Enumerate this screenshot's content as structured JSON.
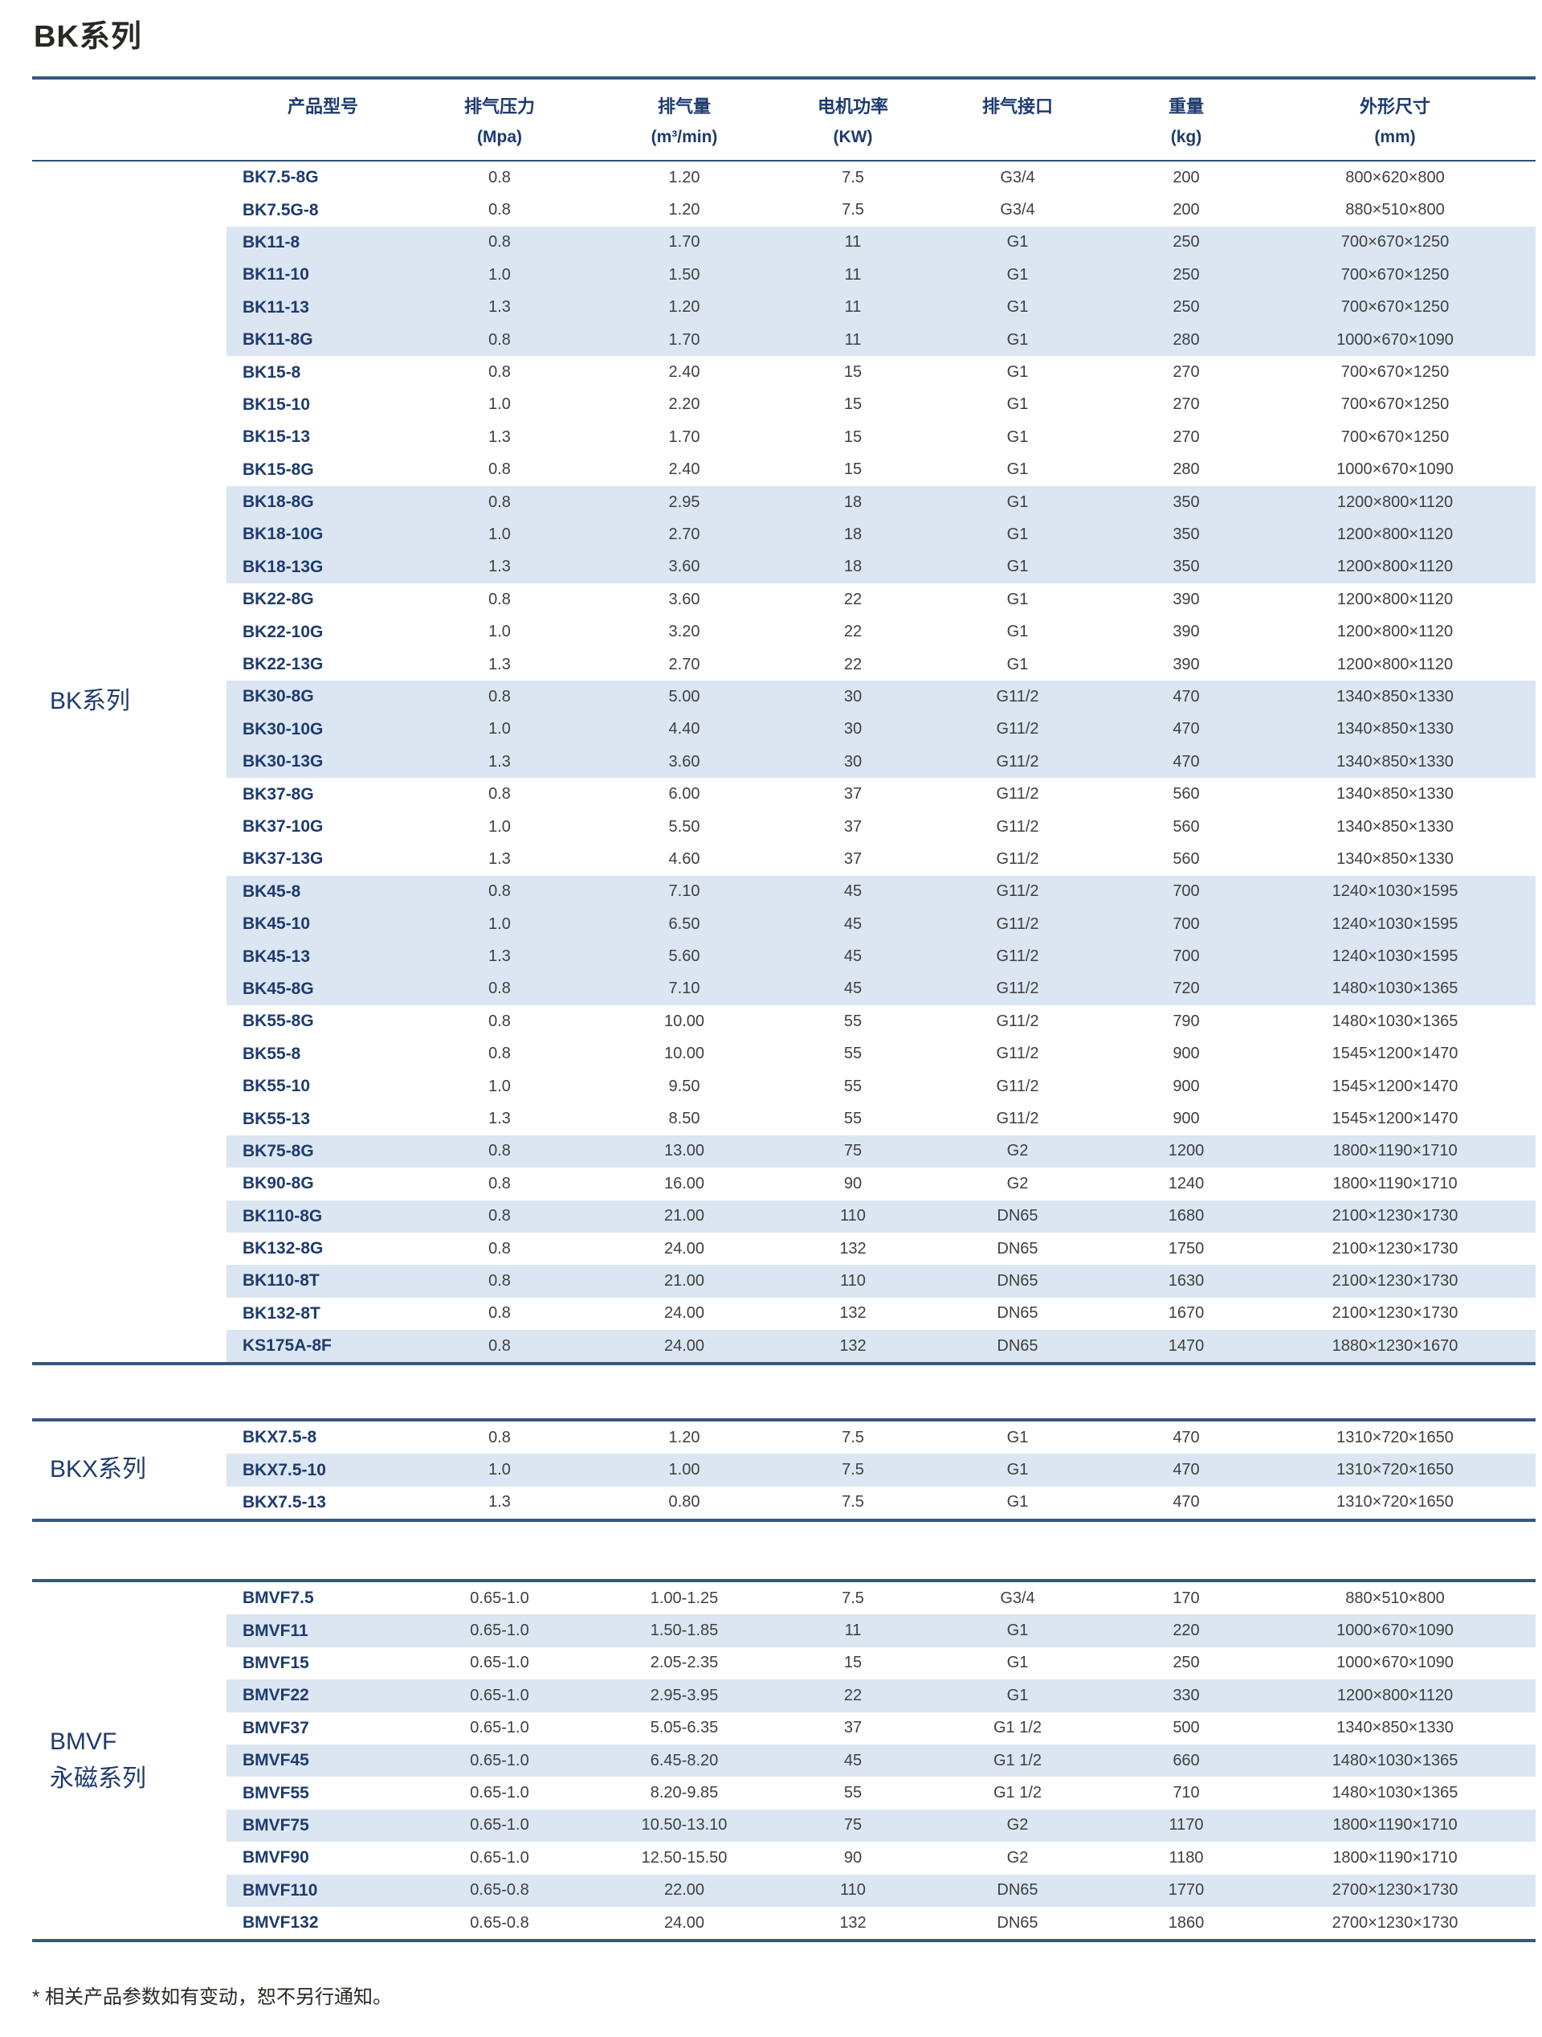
{
  "page": {
    "title": "BK系列",
    "footnote": "* 相关产品参数如有变动，恕不另行通知。"
  },
  "table_header": {
    "columns": [
      {
        "label": "产品型号",
        "unit": ""
      },
      {
        "label": "排气压力",
        "unit": "(Mpa)"
      },
      {
        "label": "排气量",
        "unit": "(m³/min)"
      },
      {
        "label": "电机功率",
        "unit": "(KW)"
      },
      {
        "label": "排气接口",
        "unit": ""
      },
      {
        "label": "重量",
        "unit": "(kg)"
      },
      {
        "label": "外形尺寸",
        "unit": "(mm)"
      }
    ]
  },
  "sections": [
    {
      "label": "BK系列",
      "rows": [
        {
          "model": "BK7.5-8G",
          "pressure": "0.8",
          "volume": "1.20",
          "power": "7.5",
          "port": "G3/4",
          "weight": "200",
          "dims": "800×620×800",
          "shaded": false
        },
        {
          "model": "BK7.5G-8",
          "pressure": "0.8",
          "volume": "1.20",
          "power": "7.5",
          "port": "G3/4",
          "weight": "200",
          "dims": "880×510×800",
          "shaded": false
        },
        {
          "model": "BK11-8",
          "pressure": "0.8",
          "volume": "1.70",
          "power": "11",
          "port": "G1",
          "weight": "250",
          "dims": "700×670×1250",
          "shaded": true
        },
        {
          "model": "BK11-10",
          "pressure": "1.0",
          "volume": "1.50",
          "power": "11",
          "port": "G1",
          "weight": "250",
          "dims": "700×670×1250",
          "shaded": true
        },
        {
          "model": "BK11-13",
          "pressure": "1.3",
          "volume": "1.20",
          "power": "11",
          "port": "G1",
          "weight": "250",
          "dims": "700×670×1250",
          "shaded": true
        },
        {
          "model": "BK11-8G",
          "pressure": "0.8",
          "volume": "1.70",
          "power": "11",
          "port": "G1",
          "weight": "280",
          "dims": "1000×670×1090",
          "shaded": true
        },
        {
          "model": "BK15-8",
          "pressure": "0.8",
          "volume": "2.40",
          "power": "15",
          "port": "G1",
          "weight": "270",
          "dims": "700×670×1250",
          "shaded": false
        },
        {
          "model": "BK15-10",
          "pressure": "1.0",
          "volume": "2.20",
          "power": "15",
          "port": "G1",
          "weight": "270",
          "dims": "700×670×1250",
          "shaded": false
        },
        {
          "model": "BK15-13",
          "pressure": "1.3",
          "volume": "1.70",
          "power": "15",
          "port": "G1",
          "weight": "270",
          "dims": "700×670×1250",
          "shaded": false
        },
        {
          "model": "BK15-8G",
          "pressure": "0.8",
          "volume": "2.40",
          "power": "15",
          "port": "G1",
          "weight": "280",
          "dims": "1000×670×1090",
          "shaded": false
        },
        {
          "model": "BK18-8G",
          "pressure": "0.8",
          "volume": "2.95",
          "power": "18",
          "port": "G1",
          "weight": "350",
          "dims": "1200×800×1120",
          "shaded": true
        },
        {
          "model": "BK18-10G",
          "pressure": "1.0",
          "volume": "2.70",
          "power": "18",
          "port": "G1",
          "weight": "350",
          "dims": "1200×800×1120",
          "shaded": true
        },
        {
          "model": "BK18-13G",
          "pressure": "1.3",
          "volume": "3.60",
          "power": "18",
          "port": "G1",
          "weight": "350",
          "dims": "1200×800×1120",
          "shaded": true
        },
        {
          "model": "BK22-8G",
          "pressure": "0.8",
          "volume": "3.60",
          "power": "22",
          "port": "G1",
          "weight": "390",
          "dims": "1200×800×1120",
          "shaded": false
        },
        {
          "model": "BK22-10G",
          "pressure": "1.0",
          "volume": "3.20",
          "power": "22",
          "port": "G1",
          "weight": "390",
          "dims": "1200×800×1120",
          "shaded": false
        },
        {
          "model": "BK22-13G",
          "pressure": "1.3",
          "volume": "2.70",
          "power": "22",
          "port": "G1",
          "weight": "390",
          "dims": "1200×800×1120",
          "shaded": false
        },
        {
          "model": "BK30-8G",
          "pressure": "0.8",
          "volume": "5.00",
          "power": "30",
          "port": "G11/2",
          "weight": "470",
          "dims": "1340×850×1330",
          "shaded": true
        },
        {
          "model": "BK30-10G",
          "pressure": "1.0",
          "volume": "4.40",
          "power": "30",
          "port": "G11/2",
          "weight": "470",
          "dims": "1340×850×1330",
          "shaded": true
        },
        {
          "model": "BK30-13G",
          "pressure": "1.3",
          "volume": "3.60",
          "power": "30",
          "port": "G11/2",
          "weight": "470",
          "dims": "1340×850×1330",
          "shaded": true
        },
        {
          "model": "BK37-8G",
          "pressure": "0.8",
          "volume": "6.00",
          "power": "37",
          "port": "G11/2",
          "weight": "560",
          "dims": "1340×850×1330",
          "shaded": false
        },
        {
          "model": "BK37-10G",
          "pressure": "1.0",
          "volume": "5.50",
          "power": "37",
          "port": "G11/2",
          "weight": "560",
          "dims": "1340×850×1330",
          "shaded": false
        },
        {
          "model": "BK37-13G",
          "pressure": "1.3",
          "volume": "4.60",
          "power": "37",
          "port": "G11/2",
          "weight": "560",
          "dims": "1340×850×1330",
          "shaded": false
        },
        {
          "model": "BK45-8",
          "pressure": "0.8",
          "volume": "7.10",
          "power": "45",
          "port": "G11/2",
          "weight": "700",
          "dims": "1240×1030×1595",
          "shaded": true
        },
        {
          "model": "BK45-10",
          "pressure": "1.0",
          "volume": "6.50",
          "power": "45",
          "port": "G11/2",
          "weight": "700",
          "dims": "1240×1030×1595",
          "shaded": true
        },
        {
          "model": "BK45-13",
          "pressure": "1.3",
          "volume": "5.60",
          "power": "45",
          "port": "G11/2",
          "weight": "700",
          "dims": "1240×1030×1595",
          "shaded": true
        },
        {
          "model": "BK45-8G",
          "pressure": "0.8",
          "volume": "7.10",
          "power": "45",
          "port": "G11/2",
          "weight": "720",
          "dims": "1480×1030×1365",
          "shaded": true
        },
        {
          "model": "BK55-8G",
          "pressure": "0.8",
          "volume": "10.00",
          "power": "55",
          "port": "G11/2",
          "weight": "790",
          "dims": "1480×1030×1365",
          "shaded": false
        },
        {
          "model": "BK55-8",
          "pressure": "0.8",
          "volume": "10.00",
          "power": "55",
          "port": "G11/2",
          "weight": "900",
          "dims": "1545×1200×1470",
          "shaded": false
        },
        {
          "model": "BK55-10",
          "pressure": "1.0",
          "volume": "9.50",
          "power": "55",
          "port": "G11/2",
          "weight": "900",
          "dims": "1545×1200×1470",
          "shaded": false
        },
        {
          "model": "BK55-13",
          "pressure": "1.3",
          "volume": "8.50",
          "power": "55",
          "port": "G11/2",
          "weight": "900",
          "dims": "1545×1200×1470",
          "shaded": false
        },
        {
          "model": "BK75-8G",
          "pressure": "0.8",
          "volume": "13.00",
          "power": "75",
          "port": "G2",
          "weight": "1200",
          "dims": "1800×1190×1710",
          "shaded": true
        },
        {
          "model": "BK90-8G",
          "pressure": "0.8",
          "volume": "16.00",
          "power": "90",
          "port": "G2",
          "weight": "1240",
          "dims": "1800×1190×1710",
          "shaded": false
        },
        {
          "model": "BK110-8G",
          "pressure": "0.8",
          "volume": "21.00",
          "power": "110",
          "port": "DN65",
          "weight": "1680",
          "dims": "2100×1230×1730",
          "shaded": true
        },
        {
          "model": "BK132-8G",
          "pressure": "0.8",
          "volume": "24.00",
          "power": "132",
          "port": "DN65",
          "weight": "1750",
          "dims": "2100×1230×1730",
          "shaded": false
        },
        {
          "model": "BK110-8T",
          "pressure": "0.8",
          "volume": "21.00",
          "power": "110",
          "port": "DN65",
          "weight": "1630",
          "dims": "2100×1230×1730",
          "shaded": true
        },
        {
          "model": "BK132-8T",
          "pressure": "0.8",
          "volume": "24.00",
          "power": "132",
          "port": "DN65",
          "weight": "1670",
          "dims": "2100×1230×1730",
          "shaded": false
        },
        {
          "model": "KS175A-8F",
          "pressure": "0.8",
          "volume": "24.00",
          "power": "132",
          "port": "DN65",
          "weight": "1470",
          "dims": "1880×1230×1670",
          "shaded": true
        }
      ]
    },
    {
      "label": "BKX系列",
      "rows": [
        {
          "model": "BKX7.5-8",
          "pressure": "0.8",
          "volume": "1.20",
          "power": "7.5",
          "port": "G1",
          "weight": "470",
          "dims": "1310×720×1650",
          "shaded": false
        },
        {
          "model": "BKX7.5-10",
          "pressure": "1.0",
          "volume": "1.00",
          "power": "7.5",
          "port": "G1",
          "weight": "470",
          "dims": "1310×720×1650",
          "shaded": true
        },
        {
          "model": "BKX7.5-13",
          "pressure": "1.3",
          "volume": "0.80",
          "power": "7.5",
          "port": "G1",
          "weight": "470",
          "dims": "1310×720×1650",
          "shaded": false
        }
      ]
    },
    {
      "label": "BMVF",
      "label2": "永磁系列",
      "rows": [
        {
          "model": "BMVF7.5",
          "pressure": "0.65-1.0",
          "volume": "1.00-1.25",
          "power": "7.5",
          "port": "G3/4",
          "weight": "170",
          "dims": "880×510×800",
          "shaded": false
        },
        {
          "model": "BMVF11",
          "pressure": "0.65-1.0",
          "volume": "1.50-1.85",
          "power": "11",
          "port": "G1",
          "weight": "220",
          "dims": "1000×670×1090",
          "shaded": true
        },
        {
          "model": "BMVF15",
          "pressure": "0.65-1.0",
          "volume": "2.05-2.35",
          "power": "15",
          "port": "G1",
          "weight": "250",
          "dims": "1000×670×1090",
          "shaded": false
        },
        {
          "model": "BMVF22",
          "pressure": "0.65-1.0",
          "volume": "2.95-3.95",
          "power": "22",
          "port": "G1",
          "weight": "330",
          "dims": "1200×800×1120",
          "shaded": true
        },
        {
          "model": "BMVF37",
          "pressure": "0.65-1.0",
          "volume": "5.05-6.35",
          "power": "37",
          "port": "G1 1/2",
          "weight": "500",
          "dims": "1340×850×1330",
          "shaded": false
        },
        {
          "model": "BMVF45",
          "pressure": "0.65-1.0",
          "volume": "6.45-8.20",
          "power": "45",
          "port": "G1 1/2",
          "weight": "660",
          "dims": "1480×1030×1365",
          "shaded": true
        },
        {
          "model": "BMVF55",
          "pressure": "0.65-1.0",
          "volume": "8.20-9.85",
          "power": "55",
          "port": "G1 1/2",
          "weight": "710",
          "dims": "1480×1030×1365",
          "shaded": false
        },
        {
          "model": "BMVF75",
          "pressure": "0.65-1.0",
          "volume": "10.50-13.10",
          "power": "75",
          "port": "G2",
          "weight": "1170",
          "dims": "1800×1190×1710",
          "shaded": true
        },
        {
          "model": "BMVF90",
          "pressure": "0.65-1.0",
          "volume": "12.50-15.50",
          "power": "90",
          "port": "G2",
          "weight": "1180",
          "dims": "1800×1190×1710",
          "shaded": false
        },
        {
          "model": "BMVF110",
          "pressure": "0.65-0.8",
          "volume": "22.00",
          "power": "110",
          "port": "DN65",
          "weight": "1770",
          "dims": "2700×1230×1730",
          "shaded": true
        },
        {
          "model": "BMVF132",
          "pressure": "0.65-0.8",
          "volume": "24.00",
          "power": "132",
          "port": "DN65",
          "weight": "1860",
          "dims": "2700×1230×1730",
          "shaded": false
        }
      ]
    }
  ]
}
